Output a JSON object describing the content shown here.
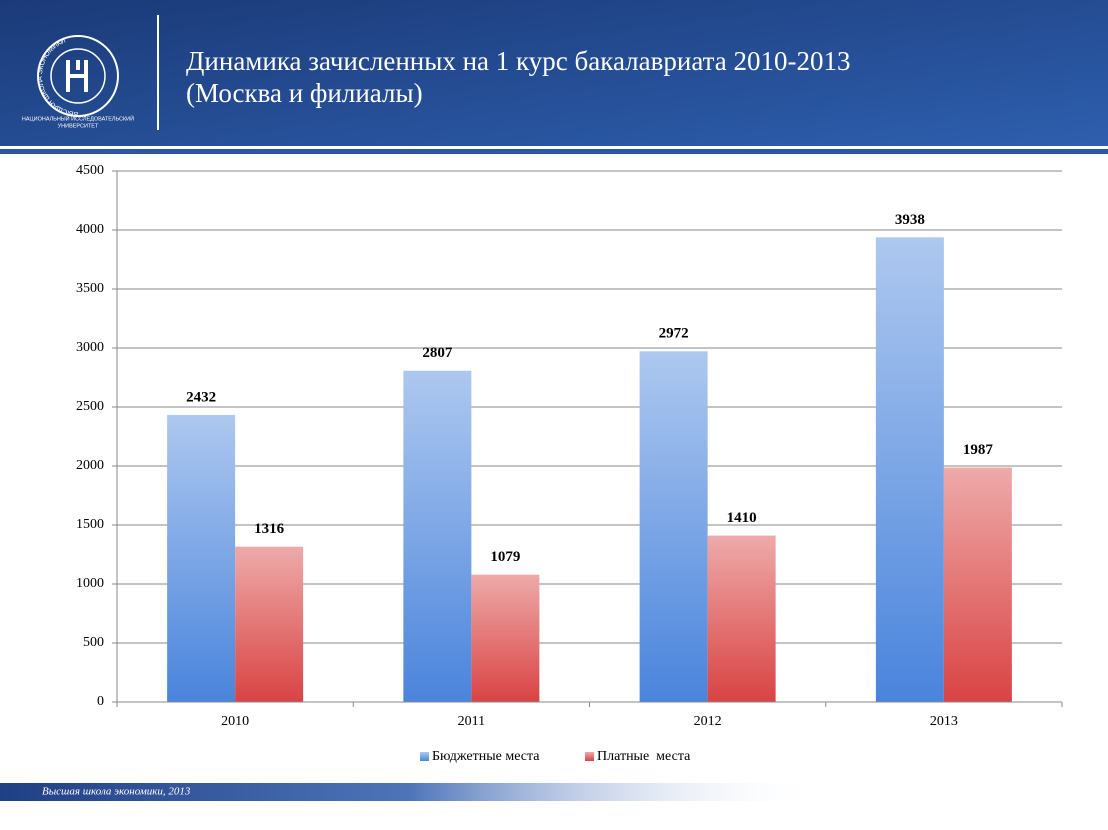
{
  "header": {
    "title": [
      "Динамика зачисленных на 1 курс бакалавриата 2010-2013",
      "(Москва и филиалы)"
    ],
    "logo_ring": "ВЫСШАЯ ШКОЛА ЭКОНОМИКИ",
    "logo_caption": [
      "НАЦИОНАЛЬНЫЙ ИССЛЕДОВАТЕЛЬСКИЙ",
      "УНИВЕРСИТЕТ"
    ]
  },
  "chart_data": {
    "type": "bar",
    "categories": [
      "2010",
      "2011",
      "2012",
      "2013"
    ],
    "series": [
      {
        "name": "Бюджетные места",
        "color": "#4a84dc",
        "values": [
          2432,
          2807,
          2972,
          3938
        ]
      },
      {
        "name": "Платные  места",
        "color": "#d94343",
        "values": [
          1316,
          1079,
          1410,
          1987
        ]
      }
    ],
    "ylim": [
      0,
      4500
    ],
    "yticks": [
      0,
      500,
      1000,
      1500,
      2000,
      2500,
      3000,
      3500,
      4000,
      4500
    ],
    "grid": true,
    "legend": "bottom"
  },
  "footer": {
    "text": "Высшая школа экономики, 2013"
  }
}
